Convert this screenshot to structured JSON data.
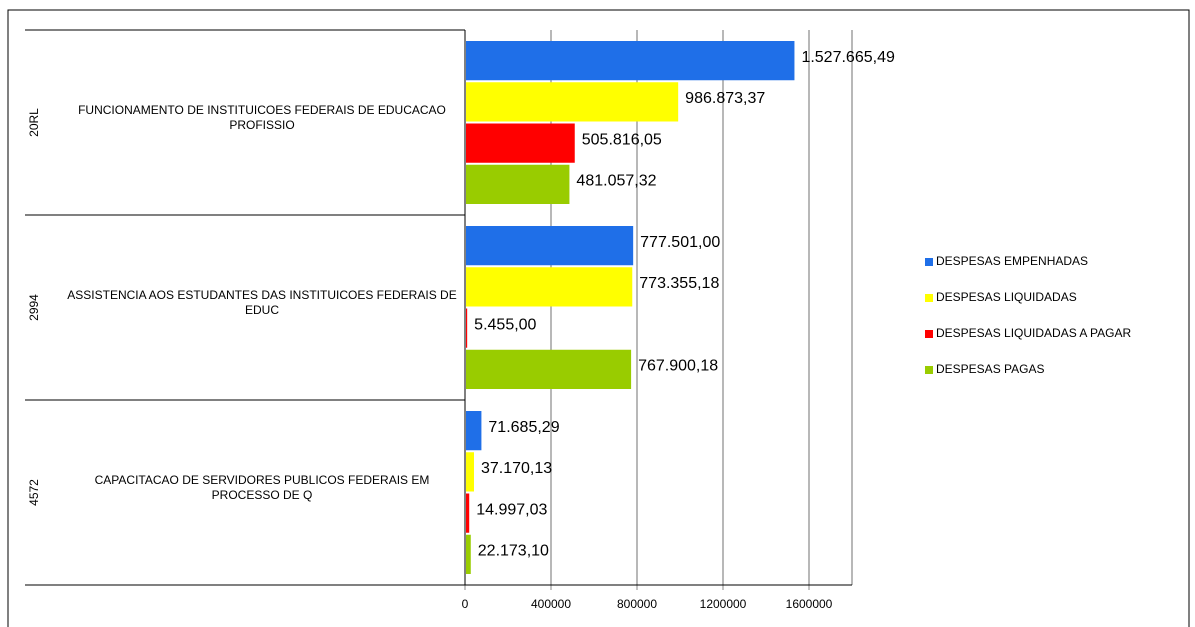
{
  "chart_data": {
    "type": "hbar",
    "category_codes": [
      "20RL",
      "2994",
      "4572"
    ],
    "categories": [
      "FUNCIONAMENTO DE INSTITUICOES FEDERAIS DE EDUCACAO PROFISSIO",
      "ASSISTENCIA AOS ESTUDANTES DAS INSTITUICOES FEDERAIS DE EDUC",
      "CAPACITACAO DE SERVIDORES PUBLICOS FEDERAIS EM PROCESSO DE Q"
    ],
    "series": [
      {
        "name": "DESPESAS EMPENHADAS",
        "color": "#1f6fe8",
        "values": [
          1527665.49,
          777501.0,
          71685.29
        ],
        "value_labels": [
          "1.527.665,49",
          "777.501,00",
          "71.685,29"
        ]
      },
      {
        "name": "DESPESAS LIQUIDADAS",
        "color": "#ffff00",
        "values": [
          986873.37,
          773355.18,
          37170.13
        ],
        "value_labels": [
          "986.873,37",
          "773.355,18",
          "37.170,13"
        ]
      },
      {
        "name": "DESPESAS LIQUIDADAS A PAGAR",
        "color": "#ff0000",
        "values": [
          505816.05,
          5455.0,
          14997.03
        ],
        "value_labels": [
          "505.816,05",
          "5.455,00",
          "14.997,03"
        ]
      },
      {
        "name": "DESPESAS PAGAS",
        "color": "#99cc00",
        "values": [
          481057.32,
          767900.18,
          22173.1
        ],
        "value_labels": [
          "481.057,32",
          "767.900,18",
          "22.173,10"
        ]
      }
    ],
    "xlim": [
      0,
      1800000
    ],
    "xticks": [
      0,
      400000,
      800000,
      1200000,
      1600000
    ],
    "grid": true,
    "legend": "right"
  }
}
